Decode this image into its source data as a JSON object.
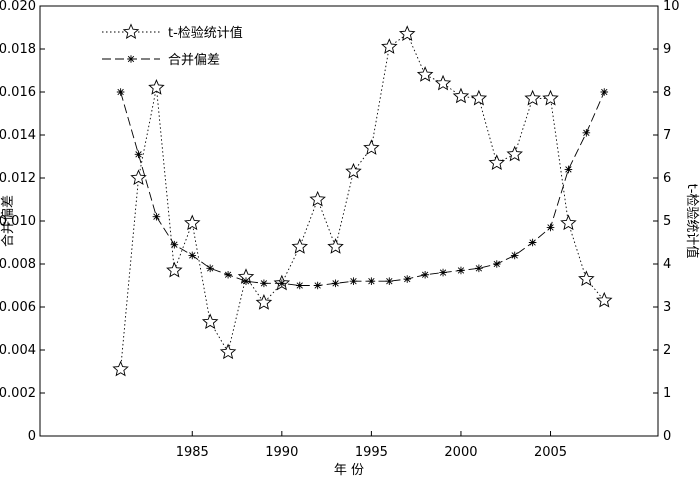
{
  "chart_data": {
    "type": "line",
    "x": [
      1981,
      1982,
      1983,
      1984,
      1985,
      1986,
      1987,
      1988,
      1989,
      1990,
      1991,
      1992,
      1993,
      1994,
      1995,
      1996,
      1997,
      1998,
      1999,
      2000,
      2001,
      2002,
      2003,
      2004,
      2005,
      2006,
      2007,
      2008
    ],
    "xlabel": "年  份",
    "ylabel": "合并偏差",
    "y2label": "t-检验统计值",
    "xlim": [
      1976.5,
      2011
    ],
    "ylim": [
      0,
      0.02
    ],
    "y2lim": [
      0,
      10
    ],
    "xticks": [
      "1985",
      "1990",
      "1995",
      "2000",
      "2005"
    ],
    "yticks": [
      "0",
      "0.002",
      "0.004",
      "0.006",
      "0.008",
      "0.010",
      "0.012",
      "0.014",
      "0.016",
      "0.018",
      "0.020"
    ],
    "y2ticks": [
      "0",
      "1",
      "2",
      "3",
      "4",
      "5",
      "6",
      "7",
      "8",
      "9",
      "10"
    ],
    "grid": false,
    "legend_position": "top-left",
    "series": [
      {
        "name": "t-检验统计值",
        "axis": "right",
        "style": "dotted",
        "marker": "star",
        "values": [
          1.55,
          6.0,
          8.1,
          3.85,
          4.95,
          2.65,
          1.95,
          3.7,
          3.1,
          3.55,
          4.4,
          5.5,
          4.4,
          6.15,
          6.7,
          9.05,
          9.35,
          8.4,
          8.2,
          7.9,
          7.85,
          6.35,
          6.55,
          7.85,
          7.85,
          4.95,
          3.65,
          3.15
        ]
      },
      {
        "name": "合并偏差",
        "axis": "left",
        "style": "dashed",
        "marker": "asterisk",
        "values": [
          0.016,
          0.0131,
          0.0102,
          0.0089,
          0.0084,
          0.0078,
          0.0075,
          0.0072,
          0.0071,
          0.0071,
          0.007,
          0.007,
          0.0071,
          0.0072,
          0.0072,
          0.0072,
          0.0073,
          0.0075,
          0.0076,
          0.0077,
          0.0078,
          0.008,
          0.0084,
          0.009,
          0.0097,
          0.0124,
          0.0141,
          0.016
        ]
      }
    ]
  }
}
